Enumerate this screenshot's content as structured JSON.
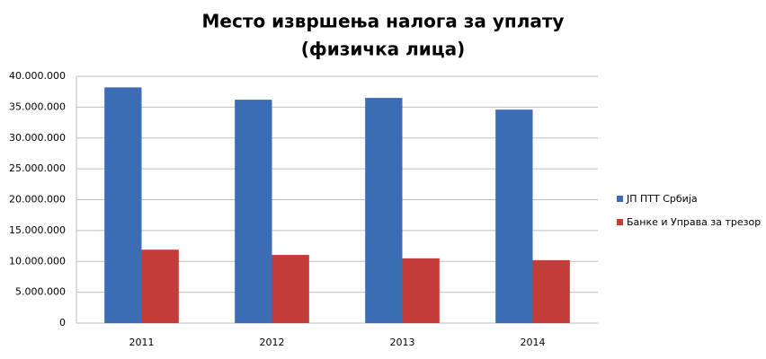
{
  "chart_data": {
    "type": "bar",
    "title": "Место извршења налога за уплату",
    "subtitle": "(физичка лица)",
    "categories": [
      "2011",
      "2012",
      "2013",
      "2014"
    ],
    "series": [
      {
        "name": "ЈП ПТТ Србија",
        "color": "#3a6db3",
        "values": [
          38200000,
          36200000,
          36500000,
          34600000
        ]
      },
      {
        "name": "Банке и Управа за трезор",
        "color": "#c23d3a",
        "values": [
          11900000,
          11050000,
          10500000,
          10200000
        ]
      }
    ],
    "ylim": [
      0,
      40000000
    ],
    "yticks": [
      0,
      {
        "value": 5000000,
        "label": "5.000.000"
      },
      {
        "value": 10000000,
        "label": "10.000.000"
      },
      {
        "value": 15000000,
        "label": "15.000.000"
      },
      {
        "value": 20000000,
        "label": "20.000.000"
      },
      {
        "value": 25000000,
        "label": "25.000.000"
      },
      {
        "value": 30000000,
        "label": "30.000.000"
      },
      {
        "value": 35000000,
        "label": "35.000.000"
      },
      {
        "value": 40000000,
        "label": "40.000.000"
      }
    ],
    "grid": true,
    "legend": "right"
  }
}
